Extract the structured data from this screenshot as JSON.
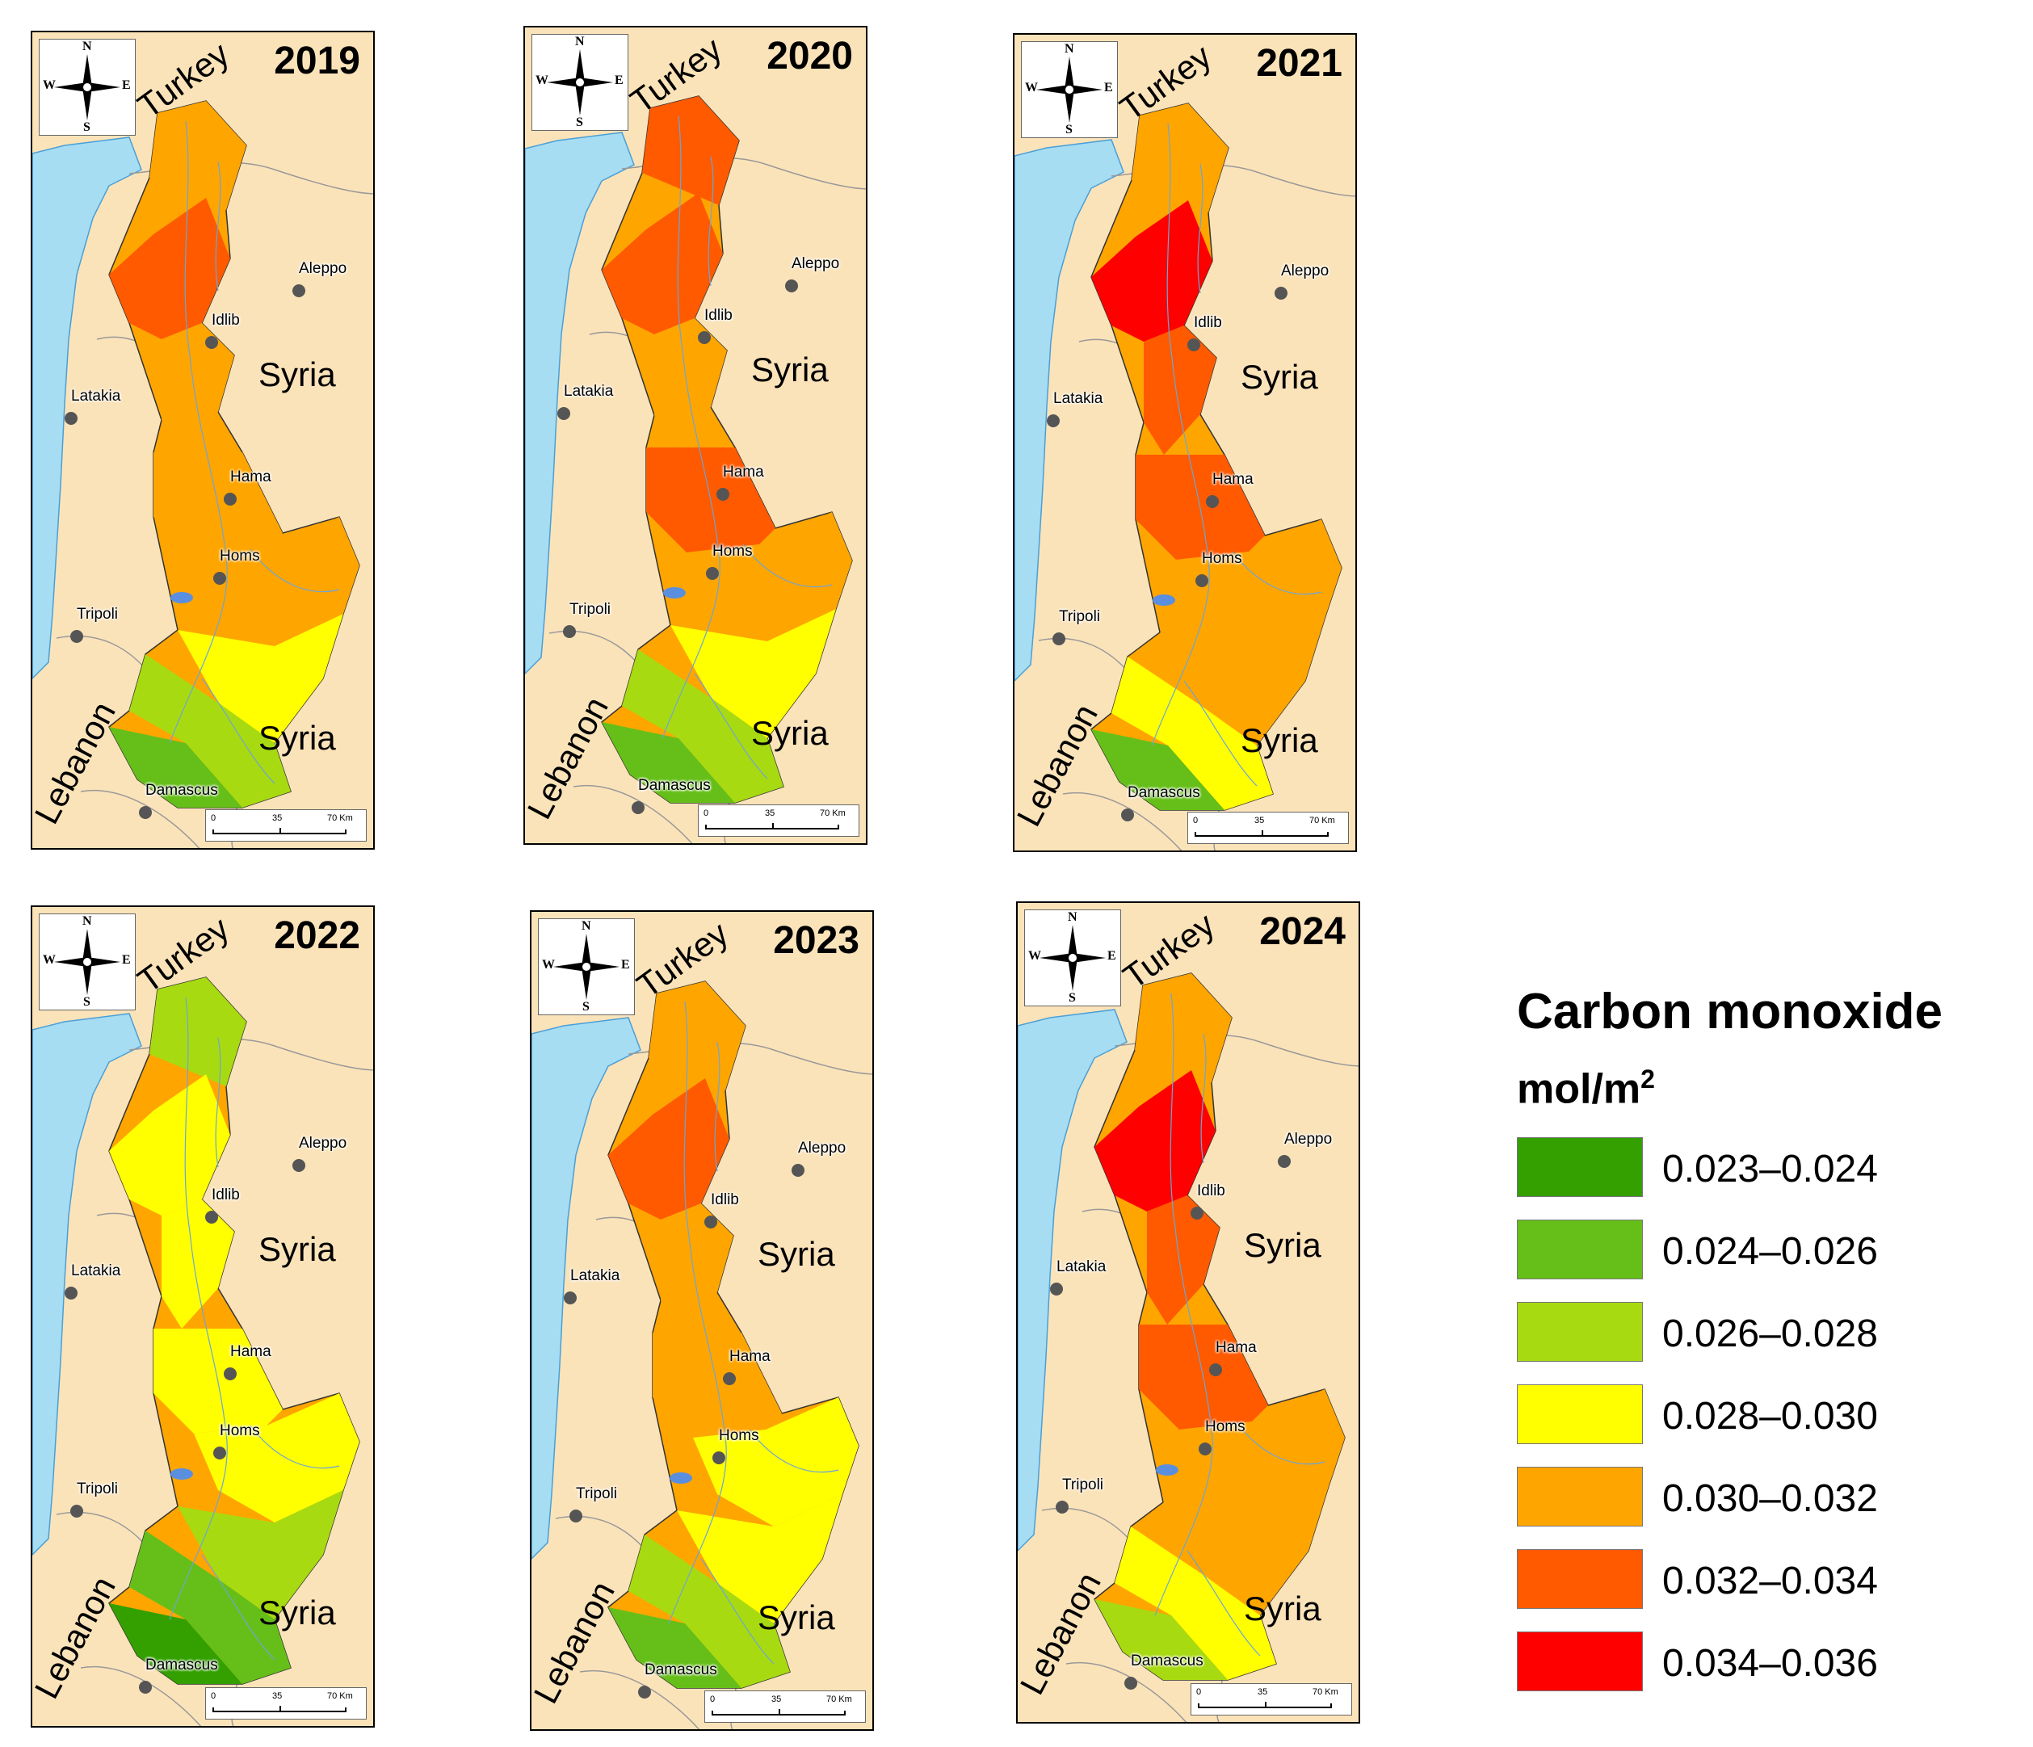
{
  "legend": {
    "title": "Carbon monoxide",
    "unit": "mol/m",
    "unit_sup": "2",
    "items": [
      {
        "label": "0.023–0.024",
        "color": "#33a000"
      },
      {
        "label": "0.024–0.026",
        "color": "#66bf19"
      },
      {
        "label": "0.026–0.028",
        "color": "#a8da11"
      },
      {
        "label": "0.028–0.030",
        "color": "#ffff00"
      },
      {
        "label": "0.030–0.032",
        "color": "#ffa500"
      },
      {
        "label": "0.032–0.034",
        "color": "#ff5a00"
      },
      {
        "label": "0.034–0.036",
        "color": "#ff0000"
      }
    ]
  },
  "map_labels": {
    "turkey": "Turkey",
    "syria_north": "Syria",
    "syria_south": "Syria",
    "lebanon": "Lebanon",
    "compass": {
      "n": "N",
      "s": "S",
      "e": "E",
      "w": "W"
    },
    "scale": {
      "t0": "0",
      "t1": "35",
      "t2": "70 Km"
    },
    "cities": {
      "aleppo": "Aleppo",
      "idlib": "Idlib",
      "latakia": "Latakia",
      "hama": "Hama",
      "homs": "Homs",
      "tripoli": "Tripoli",
      "damascus": "Damascus"
    }
  },
  "panels": [
    {
      "year": "2019",
      "zones": {
        "z1": "#ffa500",
        "z2": "#ff5a00",
        "z3": "#ffa500",
        "z4": "#ffa500",
        "z5": "#ffa500",
        "z6": "#ffff00",
        "z7": "#a8da11",
        "z8": "#66bf19"
      }
    },
    {
      "year": "2020",
      "zones": {
        "z1": "#ff5a00",
        "z2": "#ff5a00",
        "z3": "#ffa500",
        "z4": "#ff5a00",
        "z5": "#ffa500",
        "z6": "#ffff00",
        "z7": "#a8da11",
        "z8": "#66bf19"
      }
    },
    {
      "year": "2021",
      "zones": {
        "z1": "#ffa500",
        "z2": "#ff0000",
        "z3": "#ff5a00",
        "z4": "#ff5a00",
        "z5": "#ffa500",
        "z6": "#ffa500",
        "z7": "#ffff00",
        "z8": "#66bf19"
      }
    },
    {
      "year": "2022",
      "zones": {
        "z1": "#a8da11",
        "z2": "#ffff00",
        "z3": "#ffff00",
        "z4": "#ffff00",
        "z5": "#ffff00",
        "z6": "#a8da11",
        "z7": "#66bf19",
        "z8": "#33a000"
      }
    },
    {
      "year": "2023",
      "zones": {
        "z1": "#ffa500",
        "z2": "#ff5a00",
        "z3": "#ffa500",
        "z4": "#ffa500",
        "z5": "#ffff00",
        "z6": "#ffff00",
        "z7": "#a8da11",
        "z8": "#66bf19"
      }
    },
    {
      "year": "2024",
      "zones": {
        "z1": "#ffa500",
        "z2": "#ff0000",
        "z3": "#ff5a00",
        "z4": "#ff5a00",
        "z5": "#ffa500",
        "z6": "#ffa500",
        "z7": "#ffff00",
        "z8": "#a8da11"
      }
    }
  ]
}
